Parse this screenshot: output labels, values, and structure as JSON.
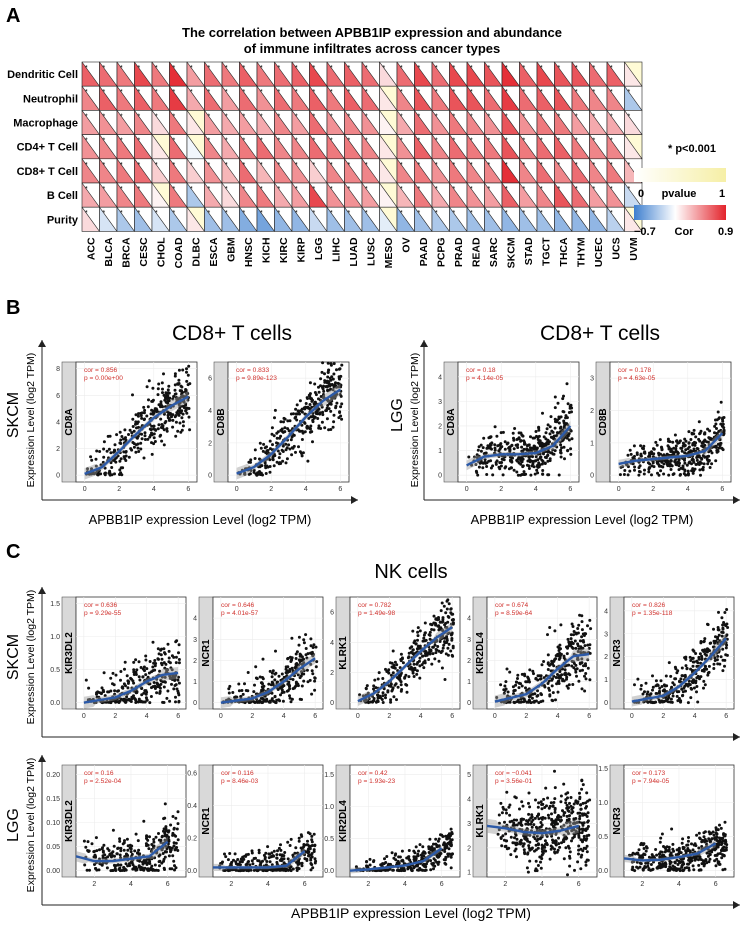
{
  "panel_a": {
    "label": "A",
    "title_line1": "The correlation between APBB1IP expression and abundance",
    "title_line2": "of immune infiltrates across cancer types",
    "rows": [
      "Dendritic Cell",
      "Neutrophil",
      "Macrophage",
      "CD4+ T Cell",
      "CD8+ T Cell",
      "B Cell",
      "Purity"
    ],
    "cancers": [
      "ACC",
      "BLCA",
      "BRCA",
      "CESC",
      "CHOL",
      "COAD",
      "DLBC",
      "ESCA",
      "GBM",
      "HNSC",
      "KICH",
      "KIRC",
      "KIRP",
      "LGG",
      "LIHC",
      "LUAD",
      "LUSC",
      "MESO",
      "OV",
      "PAAD",
      "PCPG",
      "PRAD",
      "READ",
      "SARC",
      "SKCM",
      "STAD",
      "TGCT",
      "THCA",
      "THYM",
      "UCEC",
      "UCS",
      "UVM"
    ],
    "legend_sig": "* p<0.001",
    "pvalue_label": "pvalue",
    "pvalue_min": "0",
    "pvalue_max": "1",
    "cor_label": "Cor",
    "cor_min": "−0.7",
    "cor_max": "0.9",
    "significance_marker": "*"
  },
  "chart_data": {
    "type": "heatmap",
    "title": "The correlation between APBB1IP expression and abundance of immune infiltrates across cancer types",
    "rows": [
      "Dendritic Cell",
      "Neutrophil",
      "Macrophage",
      "CD4+ T Cell",
      "CD8+ T Cell",
      "B Cell",
      "Purity"
    ],
    "columns": [
      "ACC",
      "BLCA",
      "BRCA",
      "CESC",
      "CHOL",
      "COAD",
      "DLBC",
      "ESCA",
      "GBM",
      "HNSC",
      "KICH",
      "KIRC",
      "KIRP",
      "LGG",
      "LIHC",
      "LUAD",
      "LUSC",
      "MESO",
      "OV",
      "PAAD",
      "PCPG",
      "PRAD",
      "READ",
      "SARC",
      "SKCM",
      "STAD",
      "TGCT",
      "THCA",
      "THYM",
      "UCEC",
      "UCS",
      "UVM"
    ],
    "cor_range": [
      -0.7,
      0.9
    ],
    "pvalue_range": [
      0,
      1
    ],
    "cor": [
      [
        0.65,
        0.6,
        0.55,
        0.75,
        0.55,
        0.85,
        0.4,
        0.6,
        0.55,
        0.65,
        0.55,
        0.6,
        0.65,
        0.75,
        0.6,
        0.65,
        0.6,
        0.15,
        0.6,
        0.75,
        0.6,
        0.75,
        0.75,
        0.7,
        0.85,
        0.65,
        0.75,
        0.7,
        0.7,
        0.6,
        0.65,
        0.1
      ],
      [
        0.5,
        0.65,
        0.55,
        0.65,
        0.55,
        0.8,
        0.35,
        0.6,
        0.4,
        0.6,
        0.45,
        0.6,
        0.55,
        0.65,
        0.55,
        0.65,
        0.6,
        0.1,
        0.5,
        0.7,
        0.55,
        0.7,
        0.7,
        0.6,
        0.8,
        0.6,
        0.65,
        0.7,
        0.55,
        0.5,
        0.5,
        -0.3
      ],
      [
        0.4,
        0.45,
        0.4,
        0.5,
        0.15,
        0.55,
        0.1,
        0.4,
        0.35,
        0.4,
        0.35,
        0.5,
        0.4,
        0.6,
        0.45,
        0.5,
        0.45,
        0.05,
        0.35,
        0.6,
        0.45,
        0.55,
        0.5,
        0.45,
        0.7,
        0.45,
        0.55,
        0.55,
        0.4,
        0.35,
        0.35,
        0.15
      ],
      [
        0.45,
        0.5,
        0.55,
        0.6,
        0.1,
        0.6,
        -0.05,
        0.5,
        0.35,
        0.55,
        0.6,
        0.5,
        0.5,
        0.6,
        0.55,
        0.55,
        0.5,
        0.1,
        0.45,
        0.65,
        0.5,
        0.6,
        0.55,
        0.55,
        0.7,
        0.55,
        0.6,
        0.65,
        0.55,
        0.5,
        0.5,
        0.1
      ],
      [
        0.5,
        0.5,
        0.55,
        0.6,
        0.2,
        0.55,
        0.2,
        0.45,
        0.3,
        0.6,
        0.3,
        0.5,
        0.45,
        0.2,
        0.5,
        0.5,
        0.5,
        0.1,
        0.5,
        0.55,
        0.45,
        0.55,
        0.5,
        0.5,
        0.85,
        0.5,
        0.6,
        0.5,
        0.6,
        0.5,
        0.55,
        0.3
      ],
      [
        0.35,
        0.4,
        0.5,
        0.55,
        0.05,
        0.55,
        -0.3,
        0.35,
        0.15,
        0.5,
        0.55,
        0.35,
        0.4,
        0.75,
        0.45,
        0.45,
        0.4,
        0.05,
        0.3,
        0.55,
        0.35,
        0.5,
        0.45,
        0.4,
        0.65,
        0.4,
        0.5,
        0.7,
        0.6,
        0.4,
        0.45,
        -0.2
      ],
      [
        0.15,
        -0.15,
        -0.3,
        -0.35,
        -0.15,
        -0.3,
        0.1,
        -0.35,
        -0.35,
        -0.45,
        -0.5,
        -0.4,
        -0.4,
        -0.2,
        -0.35,
        -0.35,
        -0.35,
        -0.1,
        -0.4,
        -0.35,
        -0.3,
        -0.3,
        -0.35,
        -0.35,
        -0.4,
        -0.35,
        -0.35,
        -0.4,
        -0.4,
        -0.4,
        -0.25,
        0.1
      ]
    ],
    "significant_columns_text": "all cells marked * except where pale yellow (non-significant)"
  },
  "panel_b": {
    "label": "B",
    "x_label": "APBB1IP expression Level (log2 TPM)",
    "y_label": "Expression Level (log2 TPM)",
    "groups": [
      {
        "title": "CD8+ T cells",
        "cancer": "SKCM",
        "plots": [
          {
            "gene": "CD8A",
            "cor": "cor = 0.856",
            "p": "p =  0.00e+00",
            "x_ticks": [
              "0",
              "2",
              "4",
              "6"
            ],
            "y_ticks": [
              "0",
              "2",
              "4",
              "6",
              "8"
            ],
            "ymax": 8.5,
            "xmax": 6.5,
            "curve": [
              [
                0,
                0.1
              ],
              [
                1,
                0.6
              ],
              [
                2,
                1.8
              ],
              [
                3,
                3.1
              ],
              [
                4,
                4.3
              ],
              [
                5,
                5.2
              ],
              [
                6,
                5.9
              ]
            ],
            "spread": 1.2,
            "n": 380
          },
          {
            "gene": "CD8B",
            "cor": "cor = 0.833",
            "p": "p = 9.89e-123",
            "x_ticks": [
              "0",
              "2",
              "4",
              "6"
            ],
            "y_ticks": [
              "0",
              "2",
              "4",
              "6"
            ],
            "ymax": 7,
            "xmax": 6.5,
            "curve": [
              [
                0,
                0.1
              ],
              [
                1,
                0.5
              ],
              [
                2,
                1.3
              ],
              [
                3,
                2.4
              ],
              [
                4,
                3.6
              ],
              [
                5,
                4.6
              ],
              [
                6,
                5.3
              ]
            ],
            "spread": 1.0,
            "n": 380
          }
        ]
      },
      {
        "title": "CD8+ T cells",
        "cancer": "LGG",
        "plots": [
          {
            "gene": "CD8A",
            "cor": "cor = 0.18",
            "p": "p = 4.14e-05",
            "x_ticks": [
              "0",
              "2",
              "4",
              "6"
            ],
            "y_ticks": [
              "0",
              "1",
              "2",
              "3",
              "4"
            ],
            "ymax": 4.6,
            "xmax": 6.5,
            "curve": [
              [
                0,
                0.4
              ],
              [
                1,
                0.75
              ],
              [
                2,
                0.85
              ],
              [
                3,
                0.85
              ],
              [
                4,
                0.9
              ],
              [
                5,
                1.2
              ],
              [
                6,
                2.0
              ]
            ],
            "spread": 0.55,
            "n": 420
          },
          {
            "gene": "CD8B",
            "cor": "cor = 0.178",
            "p": "p = 4.63e-05",
            "x_ticks": [
              "0",
              "2",
              "4",
              "6"
            ],
            "y_ticks": [
              "0",
              "1",
              "2",
              "3"
            ],
            "ymax": 3.5,
            "xmax": 6.5,
            "curve": [
              [
                0,
                0.35
              ],
              [
                1,
                0.45
              ],
              [
                2,
                0.5
              ],
              [
                3,
                0.55
              ],
              [
                4,
                0.6
              ],
              [
                5,
                0.75
              ],
              [
                6,
                1.3
              ]
            ],
            "spread": 0.35,
            "n": 420
          }
        ]
      }
    ]
  },
  "panel_c": {
    "label": "C",
    "title": "NK cells",
    "x_label": "APBB1IP expression Level (log2 TPM)",
    "y_label": "Expression Level (log2 TPM)",
    "rows": [
      {
        "cancer": "SKCM",
        "plots": [
          {
            "gene": "KIR3DL2",
            "cor": "cor = 0.636",
            "p": "p = 9.29e-55",
            "x_ticks": [
              "0",
              "2",
              "4",
              "6"
            ],
            "y_ticks": [
              "0.0",
              "0.5",
              "1.0",
              "1.5"
            ],
            "ymax": 1.6,
            "xmax": 6.5,
            "curve": [
              [
                0,
                0.0
              ],
              [
                2,
                0.08
              ],
              [
                3,
                0.18
              ],
              [
                4,
                0.32
              ],
              [
                5,
                0.42
              ],
              [
                6,
                0.45
              ]
            ],
            "spread": 0.25,
            "n": 300
          },
          {
            "gene": "NCR1",
            "cor": "cor = 0.646",
            "p": "p = 4.01e-57",
            "x_ticks": [
              "0",
              "2",
              "4",
              "6"
            ],
            "y_ticks": [
              "0",
              "1",
              "2",
              "3",
              "4"
            ],
            "ymax": 5,
            "xmax": 6.5,
            "curve": [
              [
                0,
                0.0
              ],
              [
                2,
                0.2
              ],
              [
                3,
                0.5
              ],
              [
                4,
                1.0
              ],
              [
                5,
                1.6
              ],
              [
                6,
                2.1
              ]
            ],
            "spread": 0.7,
            "n": 300
          },
          {
            "gene": "KLRK1",
            "cor": "cor = 0.782",
            "p": "p = 1.49e-98",
            "x_ticks": [
              "0",
              "2",
              "4",
              "6"
            ],
            "y_ticks": [
              "0",
              "2",
              "4",
              "6"
            ],
            "ymax": 7,
            "xmax": 6.5,
            "curve": [
              [
                0,
                0.1
              ],
              [
                1,
                0.6
              ],
              [
                2,
                1.4
              ],
              [
                3,
                2.4
              ],
              [
                4,
                3.4
              ],
              [
                5,
                4.3
              ],
              [
                6,
                5.0
              ]
            ],
            "spread": 0.9,
            "n": 340
          },
          {
            "gene": "KIR2DL4",
            "cor": "cor = 0.674",
            "p": "p = 8.59e-64",
            "x_ticks": [
              "0",
              "2",
              "4",
              "6"
            ],
            "y_ticks": [
              "0",
              "1",
              "2",
              "3",
              "4"
            ],
            "ymax": 5,
            "xmax": 6.5,
            "curve": [
              [
                0,
                0.05
              ],
              [
                2,
                0.4
              ],
              [
                3,
                0.9
              ],
              [
                4,
                1.6
              ],
              [
                5,
                2.2
              ],
              [
                6,
                2.3
              ]
            ],
            "spread": 0.8,
            "n": 320
          },
          {
            "gene": "NCR3",
            "cor": "cor = 0.826",
            "p": "p = 1.35e-118",
            "x_ticks": [
              "0",
              "2",
              "4",
              "6"
            ],
            "y_ticks": [
              "0",
              "1",
              "2",
              "3",
              "4"
            ],
            "ymax": 4.6,
            "xmax": 6.5,
            "curve": [
              [
                0,
                0.05
              ],
              [
                2,
                0.3
              ],
              [
                3,
                0.7
              ],
              [
                4,
                1.3
              ],
              [
                5,
                2.0
              ],
              [
                6,
                2.8
              ]
            ],
            "spread": 0.6,
            "n": 320
          }
        ]
      },
      {
        "cancer": "LGG",
        "plots": [
          {
            "gene": "KIR3DL2",
            "cor": "cor = 0.16",
            "p": "p = 2.52e-04",
            "x_ticks": [
              "2",
              "4",
              "6"
            ],
            "y_ticks": [
              "0.00",
              "0.05",
              "0.10",
              "0.15",
              "0.20"
            ],
            "ymax": 0.22,
            "xmin": 1,
            "xmax": 7,
            "curve": [
              [
                1,
                0.03
              ],
              [
                2,
                0.02
              ],
              [
                3,
                0.02
              ],
              [
                4,
                0.025
              ],
              [
                5,
                0.03
              ],
              [
                6,
                0.06
              ]
            ],
            "spread": 0.03,
            "n": 300
          },
          {
            "gene": "NCR1",
            "cor": "cor = 0.116",
            "p": "p = 8.46e-03",
            "x_ticks": [
              "2",
              "4",
              "6"
            ],
            "y_ticks": [
              "0.0",
              "0.2",
              "0.4",
              "0.6"
            ],
            "ymax": 0.65,
            "xmin": 1,
            "xmax": 7,
            "curve": [
              [
                1,
                0.02
              ],
              [
                2,
                0.02
              ],
              [
                3,
                0.02
              ],
              [
                4,
                0.02
              ],
              [
                5,
                0.03
              ],
              [
                6,
                0.12
              ]
            ],
            "spread": 0.06,
            "n": 300
          },
          {
            "gene": "KIR2DL4",
            "cor": "cor = 0.42",
            "p": "p = 1.93e-23",
            "x_ticks": [
              "2",
              "4",
              "6"
            ],
            "y_ticks": [
              "0.0",
              "0.5",
              "1.0",
              "1.5"
            ],
            "ymax": 1.65,
            "xmin": 1,
            "xmax": 7,
            "curve": [
              [
                1,
                0.0
              ],
              [
                2,
                0.02
              ],
              [
                3,
                0.05
              ],
              [
                4,
                0.08
              ],
              [
                5,
                0.15
              ],
              [
                6,
                0.35
              ]
            ],
            "spread": 0.12,
            "n": 300
          },
          {
            "gene": "KLRK1",
            "cor": "cor = −0.041",
            "p": "p = 3.56e-01",
            "x_ticks": [
              "2",
              "4",
              "6"
            ],
            "y_ticks": [
              "1",
              "2",
              "3",
              "4",
              "5"
            ],
            "ymin": 0.8,
            "ymax": 5.4,
            "xmin": 1,
            "xmax": 7,
            "curve": [
              [
                1,
                2.9
              ],
              [
                2,
                2.8
              ],
              [
                3,
                2.65
              ],
              [
                4,
                2.6
              ],
              [
                5,
                2.7
              ],
              [
                6,
                2.9
              ]
            ],
            "spread": 0.8,
            "n": 460
          },
          {
            "gene": "NCR3",
            "cor": "cor = 0.173",
            "p": "p = 7.94e-05",
            "x_ticks": [
              "2",
              "4",
              "6"
            ],
            "y_ticks": [
              "0.0",
              "0.5",
              "1.0",
              "1.5"
            ],
            "ymax": 1.55,
            "xmin": 1,
            "xmax": 7,
            "curve": [
              [
                1,
                0.18
              ],
              [
                2,
                0.15
              ],
              [
                3,
                0.16
              ],
              [
                4,
                0.2
              ],
              [
                5,
                0.25
              ],
              [
                6,
                0.4
              ]
            ],
            "spread": 0.15,
            "n": 380
          }
        ]
      }
    ]
  },
  "colors": {
    "positive": "#e3232b",
    "negative": "#3e7fcf",
    "nonsig": "#fffbd6",
    "curve": "#2c5aa8",
    "annotation": "#d0312d",
    "strip": "#d9d9d9"
  }
}
